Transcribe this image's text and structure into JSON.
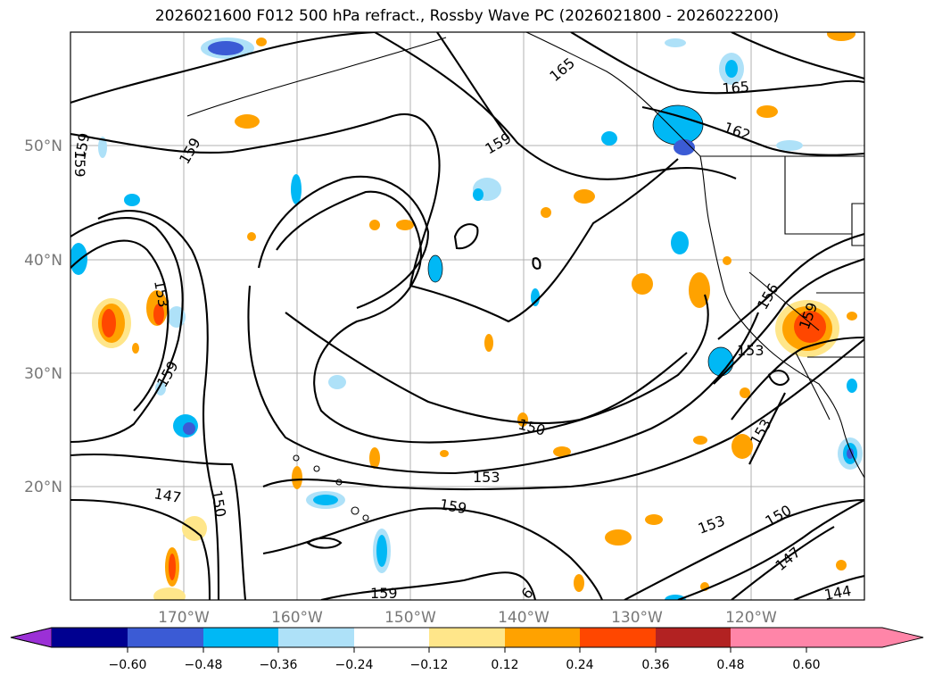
{
  "title": "2026021600 F012 500 hPa refract., Rossby Wave PC (2026021800 - 2026022200)",
  "lat_labels": [
    "50°N",
    "40°N",
    "30°N",
    "20°N"
  ],
  "lon_labels": [
    "170°W",
    "160°W",
    "150°W",
    "140°W",
    "130°W",
    "120°W"
  ],
  "contour_labels": [
    "159",
    "159",
    "159",
    "165",
    "162",
    "165",
    "156",
    "159",
    "153",
    "159",
    "147",
    "150",
    "153",
    "159",
    "150",
    "159",
    "153",
    "156",
    "159",
    "153",
    "153",
    "150",
    "147",
    "144",
    "6"
  ],
  "colorbar": {
    "ticks": [
      "−0.60",
      "−0.48",
      "−0.36",
      "−0.24",
      "−0.12",
      "0.12",
      "0.24",
      "0.36",
      "0.48",
      "0.60"
    ],
    "colors": [
      "#9b30d6",
      "#000090",
      "#3b5bd5",
      "#00b8f5",
      "#aee1f8",
      "#ffffff",
      "#ffe68a",
      "#ffa200",
      "#ff4700",
      "#b22222",
      "#ff85a8"
    ]
  }
}
